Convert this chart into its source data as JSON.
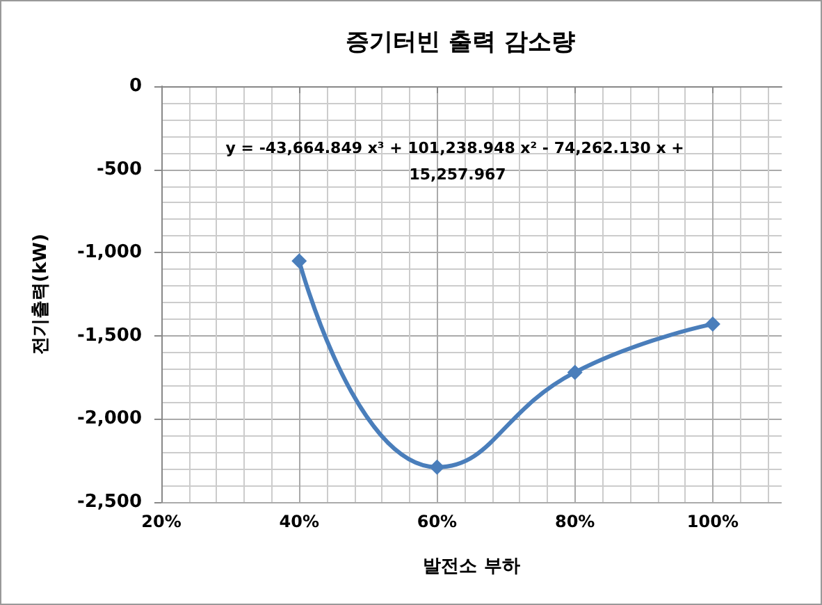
{
  "chart_data": {
    "type": "line",
    "title": "증기터빈 출력 감소량",
    "xlabel": "발전소 부하",
    "ylabel": "전기출력(kW)",
    "annotations": [
      {
        "text": "y = -43,664.849 x³ + 101,238.948 x² - 74,262.130 x + \n15,257.967"
      }
    ],
    "x": [
      40,
      60,
      80,
      100
    ],
    "series": [
      {
        "color": "#4a7ebb",
        "values": [
          -1050,
          -2290,
          -1720,
          -1430
        ]
      }
    ],
    "xlim": [
      20,
      110
    ],
    "xticks": [
      {
        "value": 20,
        "label": "20%"
      },
      {
        "value": 40,
        "label": "40%"
      },
      {
        "value": 60,
        "label": "60%"
      },
      {
        "value": 80,
        "label": "80%"
      },
      {
        "value": 100,
        "label": "100%"
      }
    ],
    "ylim": [
      -2500,
      0
    ],
    "yticks": [
      {
        "value": -2500,
        "label": "-2,500"
      },
      {
        "value": -2000,
        "label": "-2,000"
      },
      {
        "value": -1500,
        "label": "-1,500"
      },
      {
        "value": -1000,
        "label": "-1,000"
      },
      {
        "value": -500,
        "label": "-500"
      },
      0
    ],
    "grid": true,
    "marker": "diamond",
    "line_style": "solid"
  }
}
